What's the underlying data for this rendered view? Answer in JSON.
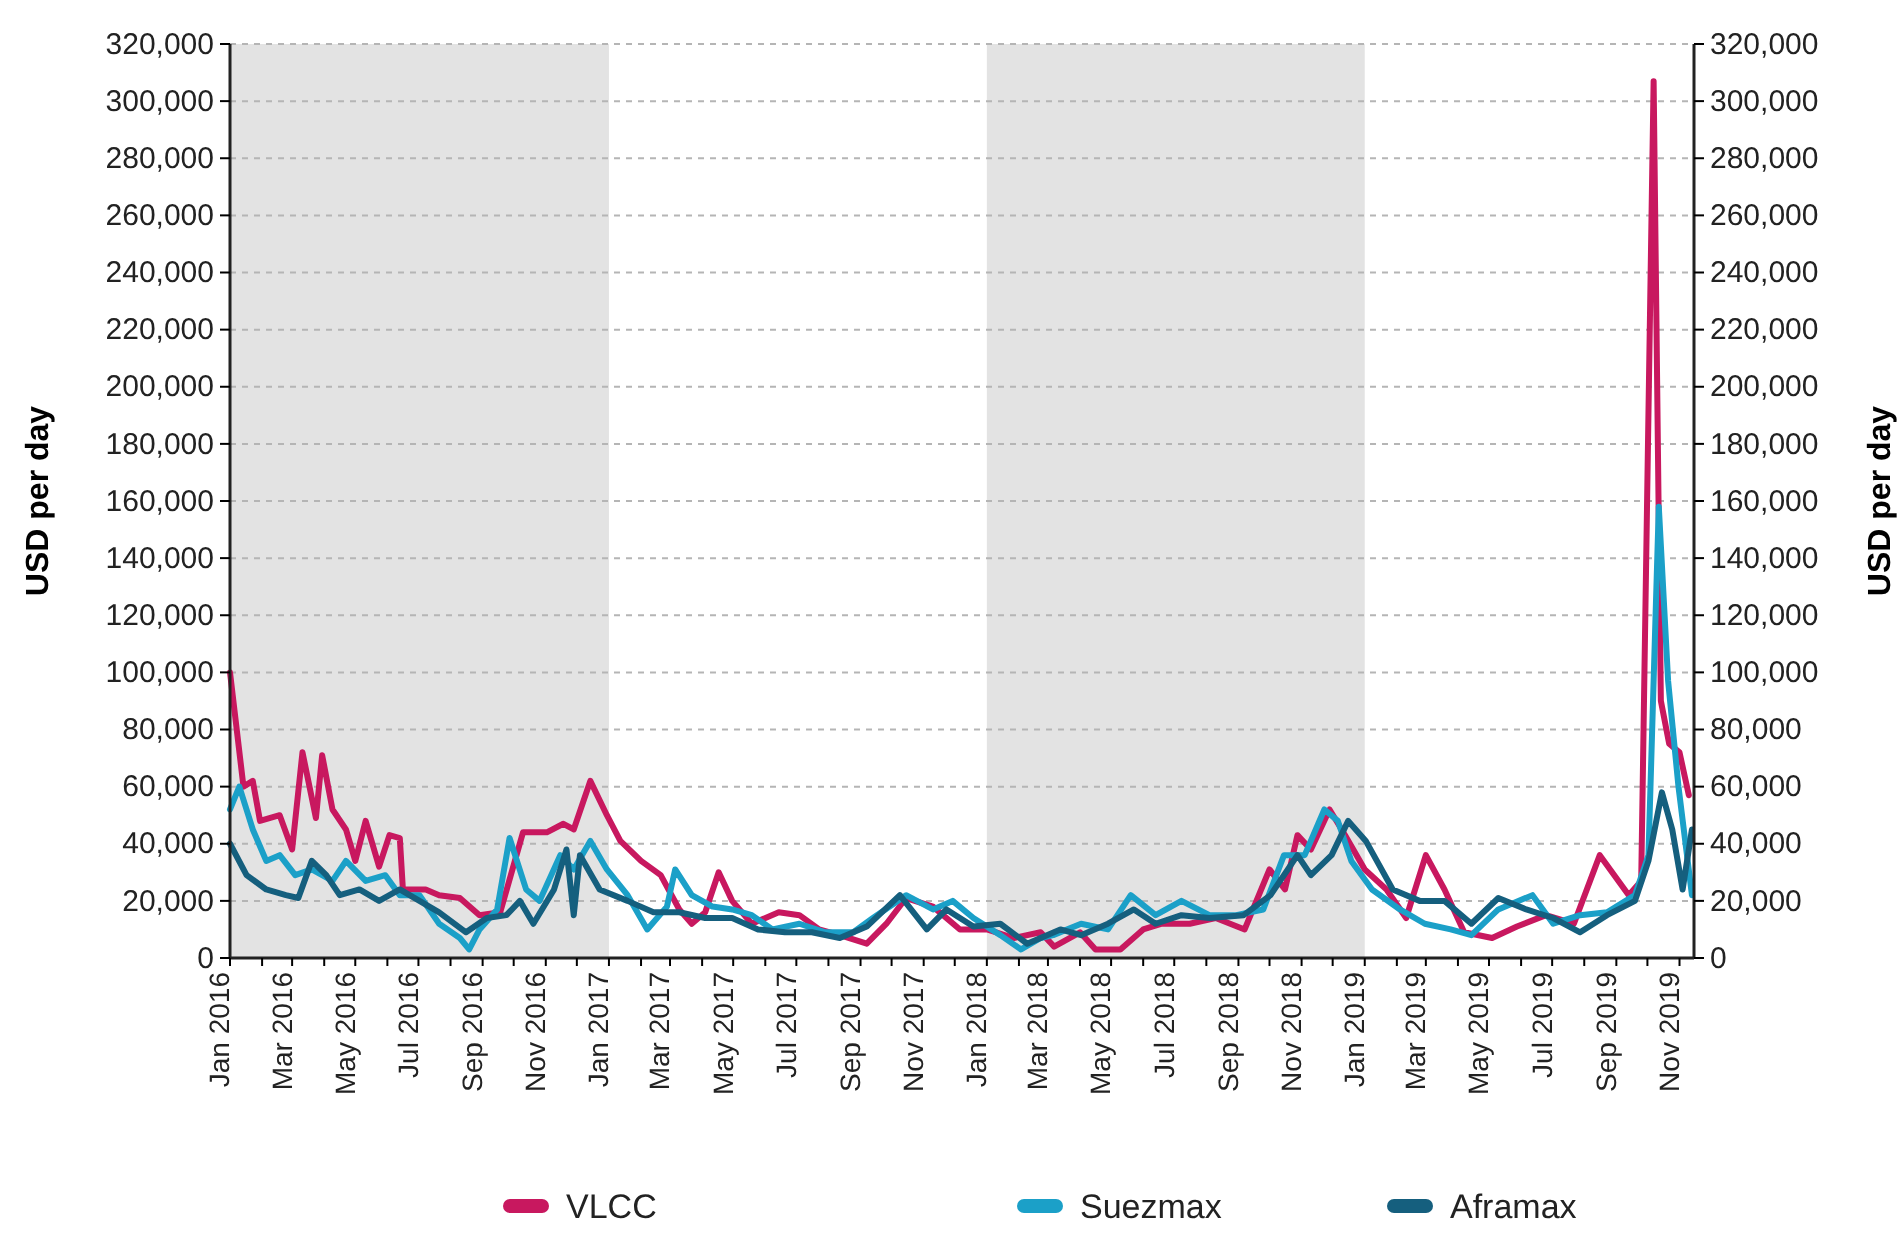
{
  "chart_data": {
    "type": "line",
    "ylabel": "USD per day",
    "y2label": "USD per day",
    "xlim": [
      "2016-01-01",
      "2019-11-15"
    ],
    "xticks": [
      {
        "value": "2016-01-01",
        "label": "Jan 2016"
      },
      {
        "value": "2016-02-01",
        "label": null
      },
      {
        "value": "2016-03-01",
        "label": "Mar 2016"
      },
      {
        "value": "2016-04-01",
        "label": null
      },
      {
        "value": "2016-05-01",
        "label": "May 2016"
      },
      {
        "value": "2016-06-01",
        "label": null
      },
      {
        "value": "2016-07-01",
        "label": "Jul 2016"
      },
      {
        "value": "2016-08-01",
        "label": null
      },
      {
        "value": "2016-09-01",
        "label": "Sep 2016"
      },
      {
        "value": "2016-10-01",
        "label": null
      },
      {
        "value": "2016-11-01",
        "label": "Nov 2016"
      },
      {
        "value": "2016-12-01",
        "label": null
      },
      {
        "value": "2017-01-01",
        "label": "Jan 2017"
      },
      {
        "value": "2017-02-01",
        "label": null
      },
      {
        "value": "2017-03-01",
        "label": "Mar 2017"
      },
      {
        "value": "2017-04-01",
        "label": null
      },
      {
        "value": "2017-05-01",
        "label": "May 2017"
      },
      {
        "value": "2017-06-01",
        "label": null
      },
      {
        "value": "2017-07-01",
        "label": "Jul 2017"
      },
      {
        "value": "2017-08-01",
        "label": null
      },
      {
        "value": "2017-09-01",
        "label": "Sep 2017"
      },
      {
        "value": "2017-10-01",
        "label": null
      },
      {
        "value": "2017-11-01",
        "label": "Nov 2017"
      },
      {
        "value": "2017-12-01",
        "label": null
      },
      {
        "value": "2018-01-01",
        "label": "Jan 2018"
      },
      {
        "value": "2018-02-01",
        "label": null
      },
      {
        "value": "2018-03-01",
        "label": "Mar 2018"
      },
      {
        "value": "2018-04-01",
        "label": null
      },
      {
        "value": "2018-05-01",
        "label": "May 2018"
      },
      {
        "value": "2018-06-01",
        "label": null
      },
      {
        "value": "2018-07-01",
        "label": "Jul 2018"
      },
      {
        "value": "2018-08-01",
        "label": null
      },
      {
        "value": "2018-09-01",
        "label": "Sep 2018"
      },
      {
        "value": "2018-10-01",
        "label": null
      },
      {
        "value": "2018-11-01",
        "label": "Nov 2018"
      },
      {
        "value": "2018-12-01",
        "label": null
      },
      {
        "value": "2019-01-01",
        "label": "Jan 2019"
      },
      {
        "value": "2019-02-01",
        "label": null
      },
      {
        "value": "2019-03-01",
        "label": "Mar 2019"
      },
      {
        "value": "2019-04-01",
        "label": null
      },
      {
        "value": "2019-05-01",
        "label": "May 2019"
      },
      {
        "value": "2019-06-01",
        "label": null
      },
      {
        "value": "2019-07-01",
        "label": "Jul 2019"
      },
      {
        "value": "2019-08-01",
        "label": null
      },
      {
        "value": "2019-09-01",
        "label": "Sep 2019"
      },
      {
        "value": "2019-10-01",
        "label": null
      },
      {
        "value": "2019-11-01",
        "label": "Nov 2019"
      }
    ],
    "ylim": [
      0,
      320000
    ],
    "yticks": [
      0,
      {
        "value": 20000,
        "label": "20,000"
      },
      {
        "value": 40000,
        "label": "40,000"
      },
      {
        "value": 60000,
        "label": "60,000"
      },
      {
        "value": 80000,
        "label": "80,000"
      },
      {
        "value": 100000,
        "label": "100,000"
      },
      {
        "value": 120000,
        "label": "120,000"
      },
      {
        "value": 140000,
        "label": "140,000"
      },
      {
        "value": 160000,
        "label": "160,000"
      },
      {
        "value": 180000,
        "label": "180,000"
      },
      {
        "value": 200000,
        "label": "200,000"
      },
      {
        "value": 220000,
        "label": "220,000"
      },
      {
        "value": 240000,
        "label": "240,000"
      },
      {
        "value": 260000,
        "label": "260,000"
      },
      {
        "value": 280000,
        "label": "280,000"
      },
      {
        "value": 300000,
        "label": "300,000"
      },
      {
        "value": 320000,
        "label": "320,000"
      }
    ],
    "y2lim": [
      0,
      320000
    ],
    "y2ticks": [
      0,
      {
        "value": 20000,
        "label": "20,000"
      },
      {
        "value": 40000,
        "label": "40,000"
      },
      {
        "value": 60000,
        "label": "60,000"
      },
      {
        "value": 80000,
        "label": "80,000"
      },
      {
        "value": 100000,
        "label": "100,000"
      },
      {
        "value": 120000,
        "label": "120,000"
      },
      {
        "value": 140000,
        "label": "140,000"
      },
      {
        "value": 160000,
        "label": "160,000"
      },
      {
        "value": 180000,
        "label": "180,000"
      },
      {
        "value": 200000,
        "label": "200,000"
      },
      {
        "value": 220000,
        "label": "220,000"
      },
      {
        "value": 240000,
        "label": "240,000"
      },
      {
        "value": 260000,
        "label": "260,000"
      },
      {
        "value": 280000,
        "label": "280,000"
      },
      {
        "value": 300000,
        "label": "300,000"
      },
      {
        "value": 320000,
        "label": "320,000"
      }
    ],
    "grid": "y",
    "legend": "bottom",
    "marker": "none",
    "line_style": "solid",
    "bands": [
      {
        "axis": "x",
        "from": "2016-01-01",
        "to": "2017-01-01",
        "color": "#e3e3e3"
      },
      {
        "axis": "x",
        "from": "2018-01-01",
        "to": "2019-01-01",
        "color": "#e3e3e3"
      }
    ],
    "series": [
      {
        "name": "VLCC",
        "color": "#c8185f",
        "x": [
          "2016-01-01",
          "2016-01-14",
          "2016-01-23",
          "2016-01-30",
          "2016-02-18",
          "2016-03-01",
          "2016-03-11",
          "2016-03-24",
          "2016-03-30",
          "2016-04-09",
          "2016-04-22",
          "2016-05-01",
          "2016-05-11",
          "2016-05-24",
          "2016-06-03",
          "2016-06-13",
          "2016-06-16",
          "2016-07-08",
          "2016-07-21",
          "2016-08-10",
          "2016-08-29",
          "2016-09-18",
          "2016-10-10",
          "2016-11-02",
          "2016-11-18",
          "2016-11-28",
          "2016-12-14",
          "2016-12-30",
          "2017-01-12",
          "2017-02-01",
          "2017-02-20",
          "2017-03-10",
          "2017-03-22",
          "2017-04-04",
          "2017-04-17",
          "2017-04-30",
          "2017-05-19",
          "2017-06-14",
          "2017-07-04",
          "2017-07-23",
          "2017-08-12",
          "2017-09-07",
          "2017-09-26",
          "2017-10-15",
          "2017-11-10",
          "2017-12-06",
          "2018-01-01",
          "2018-01-27",
          "2018-02-22",
          "2018-03-07",
          "2018-04-01",
          "2018-04-16",
          "2018-05-10",
          "2018-06-01",
          "2018-06-19",
          "2018-07-16",
          "2018-08-10",
          "2018-09-07",
          "2018-10-01",
          "2018-10-16",
          "2018-10-28",
          "2018-11-10",
          "2018-11-28",
          "2018-12-13",
          "2019-01-01",
          "2019-01-22",
          "2019-02-10",
          "2019-03-01",
          "2019-03-19",
          "2019-04-07",
          "2019-05-04",
          "2019-05-28",
          "2019-06-25",
          "2019-07-22",
          "2019-08-16",
          "2019-09-13",
          "2019-09-25",
          "2019-10-07",
          "2019-10-14",
          "2019-10-22",
          "2019-11-01",
          "2019-11-10"
        ],
        "values": [
          100000,
          60000,
          62000,
          48000,
          50000,
          38000,
          72000,
          49000,
          71000,
          52000,
          45000,
          34000,
          48000,
          32000,
          43000,
          42000,
          24000,
          24000,
          22000,
          21000,
          15000,
          16000,
          44000,
          44000,
          47000,
          45000,
          62000,
          50000,
          41000,
          34000,
          29000,
          17000,
          12000,
          16000,
          30000,
          20000,
          12000,
          16000,
          15000,
          10000,
          8000,
          5000,
          12000,
          21000,
          18000,
          10000,
          10000,
          7000,
          9000,
          4000,
          9000,
          3000,
          3000,
          10000,
          12000,
          12000,
          14000,
          10000,
          31000,
          24000,
          43000,
          38000,
          52000,
          43000,
          31000,
          24000,
          14000,
          36000,
          24000,
          9000,
          7000,
          11000,
          15000,
          12000,
          36000,
          22000,
          27000,
          307000,
          90000,
          75000,
          72000,
          57000
        ]
      },
      {
        "name": "Suezmax",
        "color": "#1ba0c8",
        "x": [
          "2016-01-01",
          "2016-01-10",
          "2016-01-23",
          "2016-02-05",
          "2016-02-18",
          "2016-03-04",
          "2016-03-20",
          "2016-04-09",
          "2016-04-22",
          "2016-05-11",
          "2016-05-30",
          "2016-06-13",
          "2016-07-02",
          "2016-07-21",
          "2016-08-10",
          "2016-08-19",
          "2016-08-29",
          "2016-09-15",
          "2016-09-27",
          "2016-10-13",
          "2016-10-26",
          "2016-11-15",
          "2016-11-28",
          "2016-12-14",
          "2016-12-30",
          "2017-01-19",
          "2017-02-07",
          "2017-02-26",
          "2017-03-06",
          "2017-03-22",
          "2017-04-11",
          "2017-04-30",
          "2017-05-19",
          "2017-06-08",
          "2017-07-04",
          "2017-07-29",
          "2017-08-25",
          "2017-09-13",
          "2017-10-15",
          "2017-11-10",
          "2017-11-29",
          "2017-12-19",
          "2018-01-14",
          "2018-02-03",
          "2018-02-22",
          "2018-03-06",
          "2018-04-02",
          "2018-04-28",
          "2018-05-20",
          "2018-06-13",
          "2018-07-08",
          "2018-08-04",
          "2018-08-30",
          "2018-09-25",
          "2018-10-15",
          "2018-11-04",
          "2018-11-23",
          "2018-12-06",
          "2018-12-19",
          "2019-01-08",
          "2019-02-04",
          "2019-02-28",
          "2019-03-25",
          "2019-04-14",
          "2019-05-10",
          "2019-06-12",
          "2019-07-02",
          "2019-07-28",
          "2019-08-23",
          "2019-09-19",
          "2019-10-02",
          "2019-10-12",
          "2019-10-21",
          "2019-10-31",
          "2019-11-13"
        ],
        "values": [
          52000,
          60000,
          45000,
          34000,
          36000,
          29000,
          31000,
          27000,
          34000,
          27000,
          29000,
          22000,
          22000,
          12000,
          7000,
          3000,
          10000,
          17000,
          42000,
          24000,
          20000,
          36000,
          31000,
          41000,
          31000,
          22000,
          10000,
          18000,
          31000,
          22000,
          18000,
          17000,
          15000,
          10000,
          12000,
          9000,
          9000,
          14000,
          22000,
          17000,
          20000,
          14000,
          8000,
          3000,
          7000,
          8000,
          12000,
          10000,
          22000,
          15000,
          20000,
          15000,
          15000,
          17000,
          36000,
          36000,
          52000,
          48000,
          34000,
          24000,
          17000,
          12000,
          10000,
          8000,
          17000,
          22000,
          12000,
          15000,
          16000,
          22000,
          36000,
          158000,
          97000,
          60000,
          22000
        ]
      },
      {
        "name": "Aframax",
        "color": "#155f7e",
        "x": [
          "2016-01-01",
          "2016-01-17",
          "2016-02-05",
          "2016-02-24",
          "2016-03-07",
          "2016-03-20",
          "2016-04-03",
          "2016-04-16",
          "2016-05-05",
          "2016-05-24",
          "2016-06-13",
          "2016-07-02",
          "2016-07-21",
          "2016-08-16",
          "2016-09-05",
          "2016-09-24",
          "2016-10-07",
          "2016-10-20",
          "2016-11-09",
          "2016-11-21",
          "2016-11-28",
          "2016-12-04",
          "2016-12-23",
          "2017-01-19",
          "2017-02-13",
          "2017-03-10",
          "2017-04-04",
          "2017-04-30",
          "2017-05-25",
          "2017-06-20",
          "2017-07-16",
          "2017-08-12",
          "2017-09-07",
          "2017-10-09",
          "2017-11-04",
          "2017-11-23",
          "2017-12-19",
          "2018-01-14",
          "2018-02-09",
          "2018-03-13",
          "2018-04-02",
          "2018-04-28",
          "2018-05-23",
          "2018-06-13",
          "2018-07-08",
          "2018-08-04",
          "2018-09-06",
          "2018-10-02",
          "2018-10-28",
          "2018-11-10",
          "2018-11-30",
          "2018-12-16",
          "2019-01-02",
          "2019-01-28",
          "2019-02-23",
          "2019-03-19",
          "2019-04-14",
          "2019-05-10",
          "2019-06-06",
          "2019-07-02",
          "2019-07-28",
          "2019-08-23",
          "2019-09-19",
          "2019-10-02",
          "2019-10-15",
          "2019-10-25",
          "2019-11-04",
          "2019-11-13"
        ],
        "values": [
          40000,
          29000,
          24000,
          22000,
          21000,
          34000,
          29000,
          22000,
          24000,
          20000,
          24000,
          20000,
          16000,
          9000,
          14000,
          15000,
          20000,
          12000,
          24000,
          38000,
          15000,
          36000,
          24000,
          20000,
          16000,
          16000,
          14000,
          14000,
          10000,
          9000,
          9000,
          7000,
          11000,
          22000,
          10000,
          17000,
          11000,
          12000,
          5000,
          10000,
          8000,
          12000,
          17000,
          12000,
          15000,
          14000,
          15000,
          22000,
          36000,
          29000,
          36000,
          48000,
          41000,
          24000,
          20000,
          20000,
          12000,
          21000,
          17000,
          14000,
          9000,
          15000,
          20000,
          34000,
          58000,
          45000,
          24000,
          45000
        ]
      }
    ]
  }
}
